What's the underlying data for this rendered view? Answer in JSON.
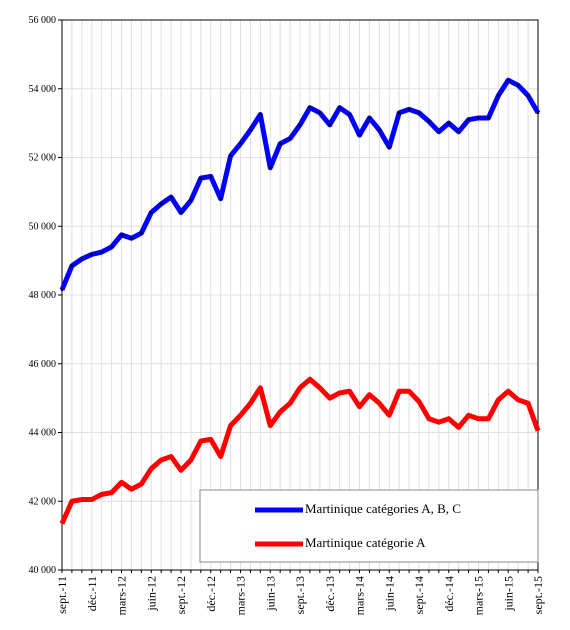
{
  "chart_data": {
    "type": "line",
    "categories": [
      "sept.-11",
      null,
      null,
      "déc.-11",
      null,
      null,
      "mars-12",
      null,
      null,
      "juin-12",
      null,
      null,
      "sept.-12",
      null,
      null,
      "déc.-12",
      null,
      null,
      "mars-13",
      null,
      null,
      "juin-13",
      null,
      null,
      "sept.-13",
      null,
      null,
      "déc.-13",
      null,
      null,
      "mars-14",
      null,
      null,
      "juin-14",
      null,
      null,
      "sept.-14",
      null,
      null,
      "déc.-14",
      null,
      null,
      "mars-15",
      null,
      null,
      "juin-15",
      null,
      null,
      "sept.-15"
    ],
    "series": [
      {
        "name": "Martinique catégories A, B, C",
        "color": "#0000ff",
        "values": [
          48150,
          48850,
          49050,
          49180,
          49250,
          49400,
          49750,
          49650,
          49800,
          50400,
          50650,
          50850,
          50400,
          50750,
          51400,
          51450,
          50800,
          52050,
          52400,
          52800,
          53250,
          51700,
          52400,
          52550,
          52950,
          53450,
          53300,
          52950,
          53450,
          53250,
          52650,
          53150,
          52800,
          52300,
          53300,
          53400,
          53300,
          53050,
          52750,
          53000,
          52750,
          53100,
          53150,
          53150,
          53800,
          54250,
          54100,
          53800,
          53300
        ]
      },
      {
        "name": "Martinique catégorie A",
        "color": "#ff0000",
        "values": [
          41350,
          42000,
          42050,
          42050,
          42200,
          42250,
          42550,
          42350,
          42500,
          42950,
          43200,
          43300,
          42900,
          43200,
          43750,
          43800,
          43300,
          44200,
          44500,
          44850,
          45300,
          44200,
          44600,
          44850,
          45300,
          45550,
          45300,
          45000,
          45150,
          45200,
          44750,
          45100,
          44850,
          44500,
          45200,
          45200,
          44900,
          44400,
          44300,
          44400,
          44150,
          44500,
          44400,
          44400,
          44950,
          45200,
          44950,
          44850,
          44050
        ]
      }
    ],
    "ylim": [
      40000,
      56000
    ],
    "yticks": [
      {
        "value": 40000,
        "label": "40 000"
      },
      {
        "value": 42000,
        "label": "42 000"
      },
      {
        "value": 44000,
        "label": "44 000"
      },
      {
        "value": 46000,
        "label": "46 000"
      },
      {
        "value": 48000,
        "label": "48 000"
      },
      {
        "value": 50000,
        "label": "50 000"
      },
      {
        "value": 52000,
        "label": "52 000"
      },
      {
        "value": 54000,
        "label": "54 000"
      },
      {
        "value": 56000,
        "label": "56 000"
      }
    ],
    "grid": true
  }
}
